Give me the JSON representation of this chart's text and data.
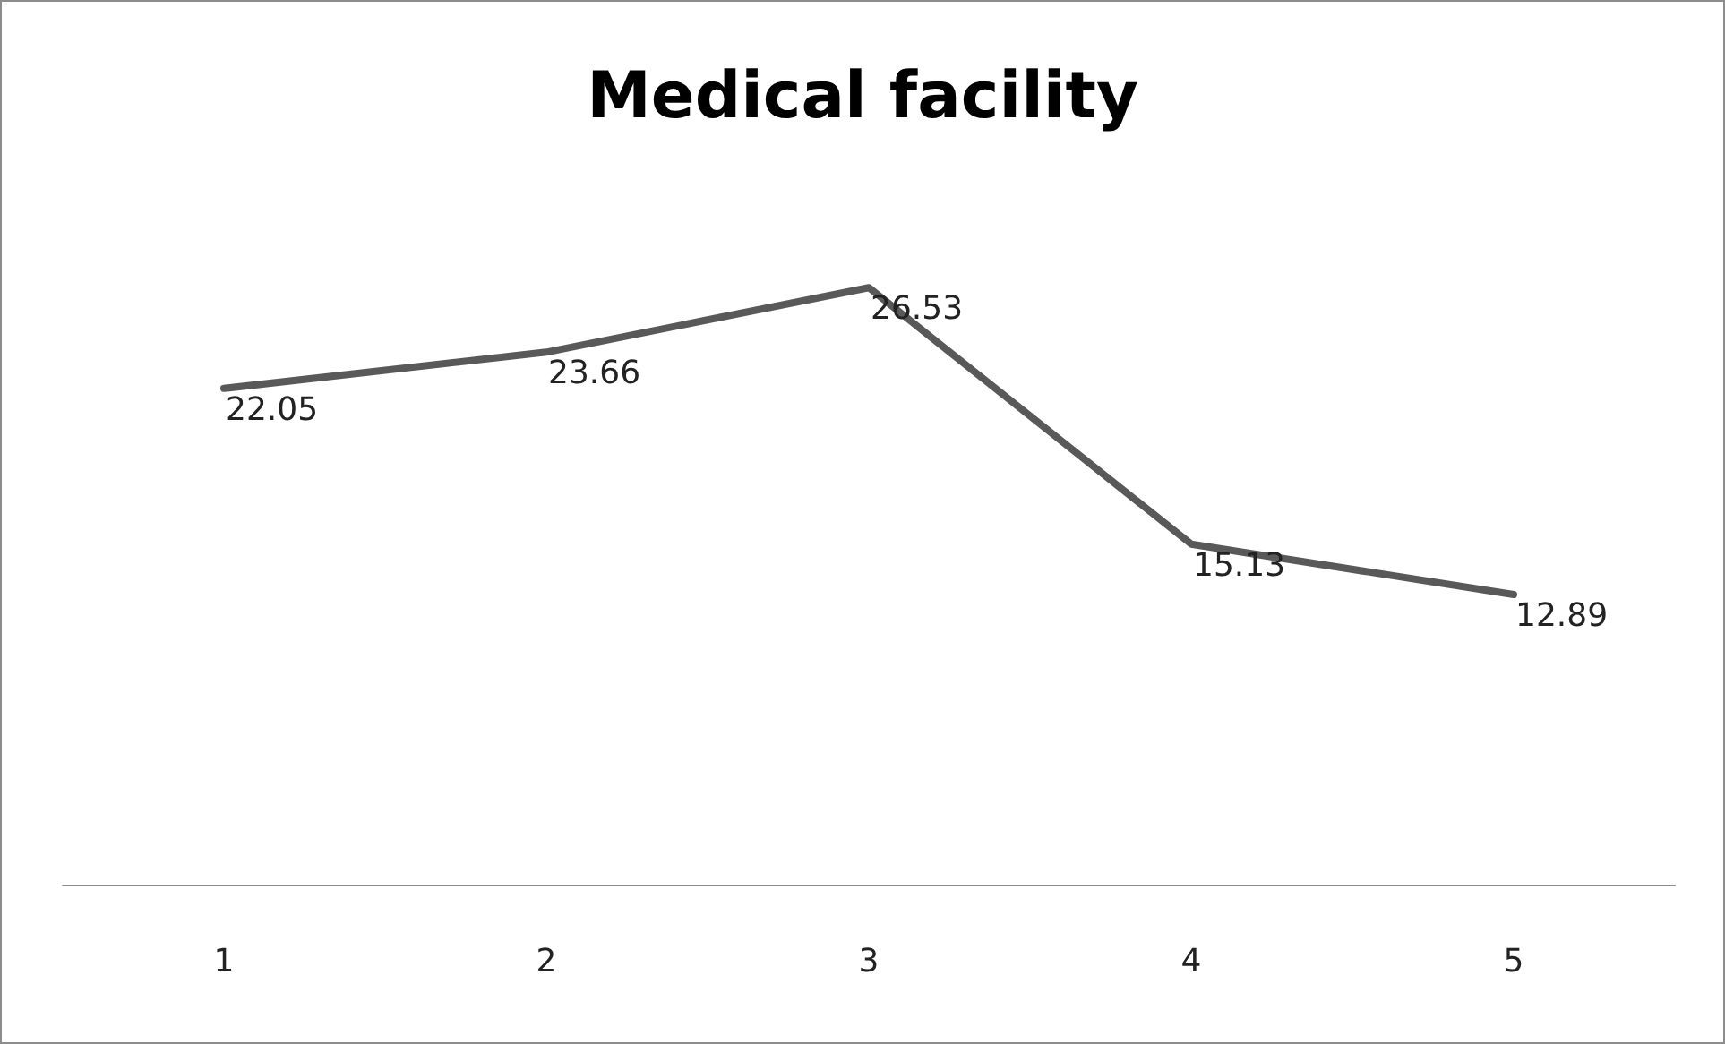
{
  "chart_data": {
    "type": "line",
    "title": "Medical facility",
    "categories": [
      "1",
      "2",
      "3",
      "4",
      "5"
    ],
    "series": [
      {
        "color": "#595959",
        "values": [
          22.05,
          23.66,
          26.53,
          15.13,
          12.89
        ]
      }
    ],
    "tick_labels": "x",
    "data_labels": true,
    "marker": "none",
    "line_style": "solid"
  }
}
